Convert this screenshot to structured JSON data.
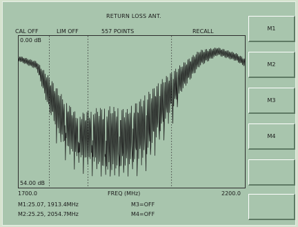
{
  "header": {
    "title": "RETURN LOSS ANT.",
    "status": [
      "CAL OFF",
      "LIM OFF",
      "557 POINTS",
      "RECALL"
    ]
  },
  "plot": {
    "y_top_label": "0.00 dB",
    "y_bottom_label": "54.00 dB"
  },
  "xaxis": {
    "start": "1700.0",
    "label": "FREQ (MHz)",
    "stop": "2200.0"
  },
  "markers": {
    "m1": "M1:25.07, 1913.4MHz",
    "m2": "M2:25.25, 2054.7MHz",
    "m3": "M3=OFF",
    "m4": "M4=OFF"
  },
  "softkeys": [
    "M1",
    "M2",
    "M3",
    "M4",
    "",
    ""
  ],
  "chart_data": {
    "type": "line",
    "x_range": [
      1700.0,
      2200.0
    ],
    "y_range_db": [
      0.0,
      54.0
    ],
    "title": "RETURN LOSS ANT.",
    "xlabel": "FREQ (MHz)",
    "points": 557,
    "vertical_marker_lines_x": [
      1768,
      1853,
      2038
    ],
    "series": [
      {
        "name": "",
        "envelope_upper_db": [
          [
            1700,
            7
          ],
          [
            1740,
            9
          ],
          [
            1770,
            15
          ],
          [
            1800,
            22
          ],
          [
            1830,
            28
          ],
          [
            1860,
            26
          ],
          [
            1900,
            25
          ],
          [
            1940,
            26
          ],
          [
            1980,
            21
          ],
          [
            2020,
            15
          ],
          [
            2060,
            10
          ],
          [
            2100,
            5
          ],
          [
            2140,
            4
          ],
          [
            2180,
            6
          ],
          [
            2200,
            8
          ]
        ],
        "envelope_lower_db": [
          [
            1700,
            9
          ],
          [
            1740,
            12
          ],
          [
            1770,
            28
          ],
          [
            1800,
            38
          ],
          [
            1830,
            43
          ],
          [
            1860,
            44
          ],
          [
            1900,
            48
          ],
          [
            1940,
            46
          ],
          [
            1980,
            43
          ],
          [
            2020,
            32
          ],
          [
            2060,
            20
          ],
          [
            2100,
            11
          ],
          [
            2140,
            7
          ],
          [
            2180,
            9
          ],
          [
            2200,
            11
          ]
        ]
      }
    ]
  }
}
